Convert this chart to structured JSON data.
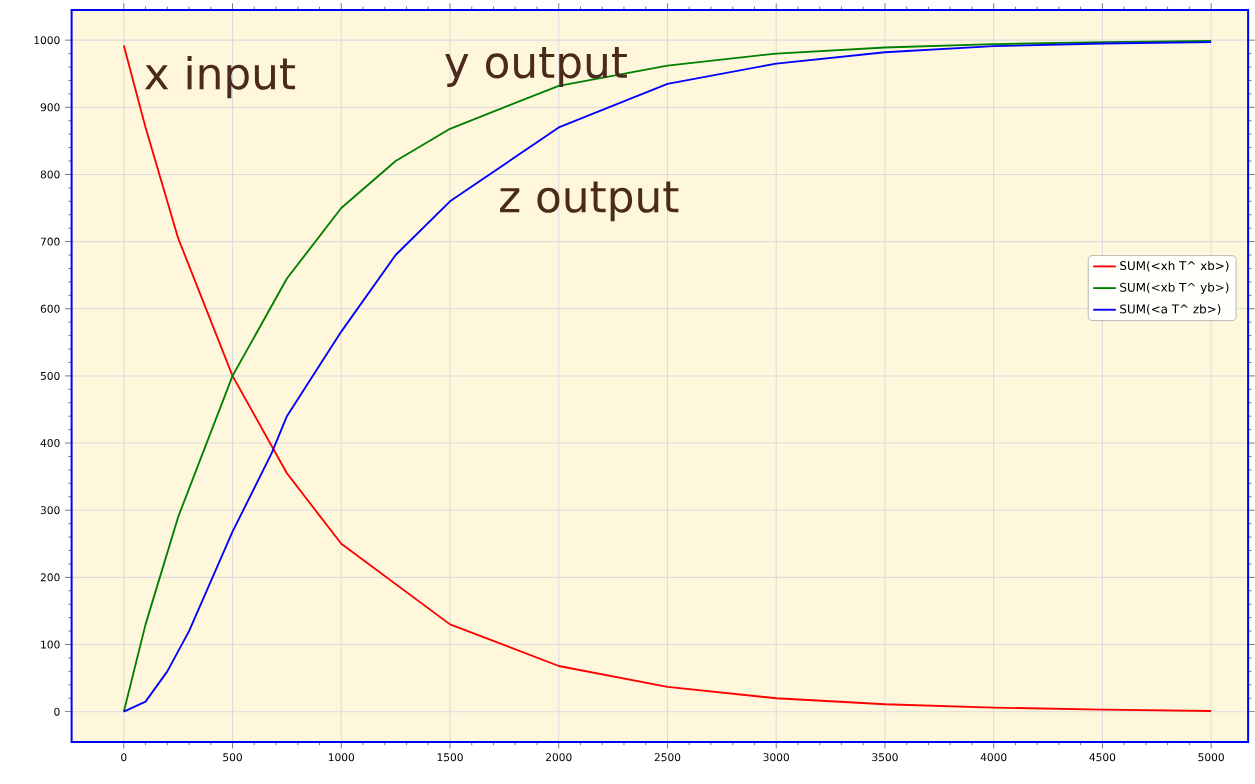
{
  "chart_data": {
    "type": "line",
    "xlim": [
      -240,
      5170
    ],
    "ylim": [
      -45,
      1045
    ],
    "xticks": [
      0,
      500,
      1000,
      1500,
      2000,
      2500,
      3000,
      3500,
      4000,
      4500,
      5000
    ],
    "yticks": [
      0,
      100,
      200,
      300,
      400,
      500,
      600,
      700,
      800,
      900,
      1000
    ],
    "grid": true,
    "legend": "right",
    "marker": "none",
    "line_style": "solid",
    "annotations": [
      "x input",
      "y output",
      "z output"
    ],
    "series": [
      {
        "name": "SUM(<xh T^ xb>)",
        "color": "#ff0000",
        "x": [
          0,
          100,
          250,
          500,
          750,
          1000,
          1500,
          2000,
          2500,
          3000,
          3500,
          4000,
          4500,
          5000
        ],
        "values": [
          992,
          870,
          705,
          500,
          355,
          250,
          130,
          68,
          37,
          20,
          11,
          6,
          3,
          1
        ]
      },
      {
        "name": "SUM(<xb T^ yb>)",
        "color": "#008000",
        "x": [
          0,
          100,
          250,
          500,
          750,
          1000,
          1250,
          1500,
          2000,
          2500,
          3000,
          3500,
          4000,
          4500,
          5000
        ],
        "values": [
          0,
          130,
          290,
          500,
          645,
          750,
          820,
          868,
          932,
          962,
          980,
          989,
          994,
          997,
          999
        ]
      },
      {
        "name": "SUM(<a T^ zb>)",
        "color": "#0000ff",
        "x": [
          0,
          100,
          200,
          300,
          500,
          680,
          750,
          1000,
          1250,
          1500,
          2000,
          2500,
          3000,
          3500,
          4000,
          4500,
          5000
        ],
        "values": [
          0,
          15,
          60,
          120,
          268,
          385,
          440,
          566,
          680,
          760,
          870,
          935,
          965,
          982,
          991,
          995,
          997
        ]
      }
    ]
  }
}
